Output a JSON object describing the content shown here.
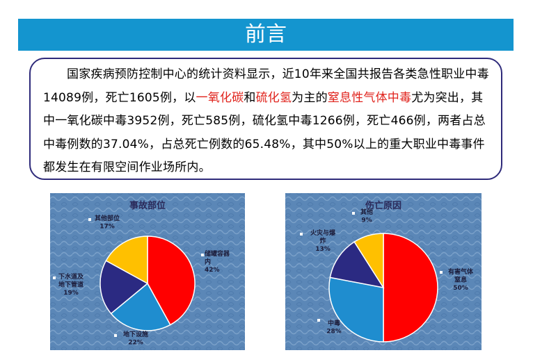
{
  "header": {
    "title": "前言"
  },
  "intro": {
    "seg1": "国家疾病预防控制中心的统计资料显示，近10年来全国共报告各类急性职业中毒14089例，死亡1605例，以",
    "hl1": "一氧化碳",
    "seg2": "和",
    "hl2": "硫化氢",
    "seg3": "为主的",
    "hl3": "窒息性气体中毒",
    "seg4": "尤为突出，其中一氧化碳中毒3952例，死亡585例，硫化氢中毒1266例，死亡466例，两者占总中毒例数的37.04%，占总死亡例数的65.48%，其中50%以上的重大职业中毒事件都发生在有限空间作业场所内。"
  },
  "colors": {
    "title_bar": "#1495cf",
    "panel_bg": "#5b87b7",
    "red": "#ff0000",
    "blue": "#1f8dcf",
    "navy": "#2b2a82",
    "yellow": "#ffc000"
  },
  "chart_data": [
    {
      "type": "pie",
      "title": "事故部位",
      "slices": [
        {
          "label_lines": [
            "储罐容器",
            "内"
          ],
          "pct": "42%",
          "value": 42,
          "color": "#ff0000"
        },
        {
          "label_lines": [
            "地下设施"
          ],
          "pct": "22%",
          "value": 22,
          "color": "#1f8dcf"
        },
        {
          "label_lines": [
            "下水道及",
            "地下管道"
          ],
          "pct": "19%",
          "value": 19,
          "color": "#2b2a82"
        },
        {
          "label_lines": [
            "其他部位"
          ],
          "pct": "17%",
          "value": 17,
          "color": "#ffc000"
        }
      ]
    },
    {
      "type": "pie",
      "title": "伤亡原因",
      "slices": [
        {
          "label_lines": [
            "有害气体",
            "窒息"
          ],
          "pct": "50%",
          "value": 50,
          "color": "#ff0000"
        },
        {
          "label_lines": [
            "中毒"
          ],
          "pct": "28%",
          "value": 28,
          "color": "#1f8dcf"
        },
        {
          "label_lines": [
            "火灾与爆",
            "炸"
          ],
          "pct": "13%",
          "value": 13,
          "color": "#2b2a82"
        },
        {
          "label_lines": [
            "其他"
          ],
          "pct": "9%",
          "value": 9,
          "color": "#ffc000"
        }
      ]
    }
  ]
}
